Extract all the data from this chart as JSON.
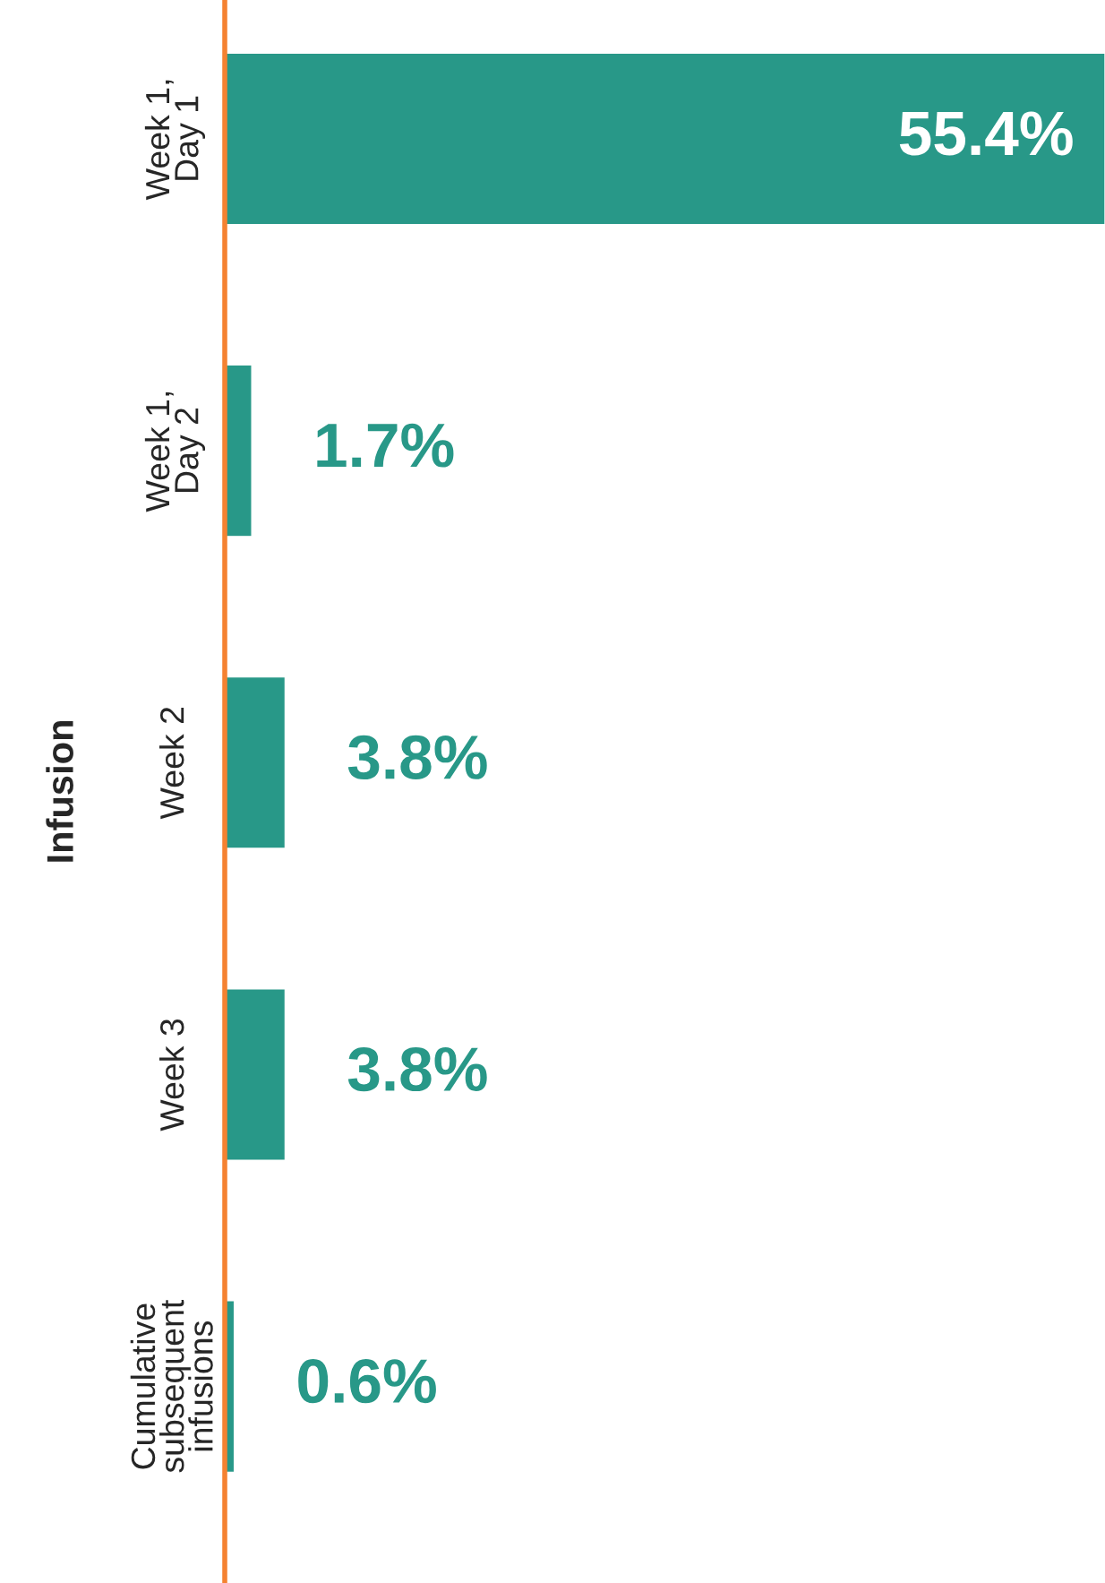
{
  "chart_data": {
    "type": "bar",
    "orientation": "horizontal",
    "ylabel": "Infusion",
    "categories": [
      "Week 1,\nDay 1",
      "Week 1,\nDay 2",
      "Week 2",
      "Week 3",
      "Cumulative\nsubsequent\ninfusions"
    ],
    "values": [
      55.4,
      1.7,
      3.8,
      3.8,
      0.6
    ],
    "value_labels": [
      "55.4%",
      "1.7%",
      "3.8%",
      "3.8%",
      "0.6%"
    ],
    "color": "#289888",
    "tick_labels": "y",
    "grid": false,
    "legend": false
  }
}
